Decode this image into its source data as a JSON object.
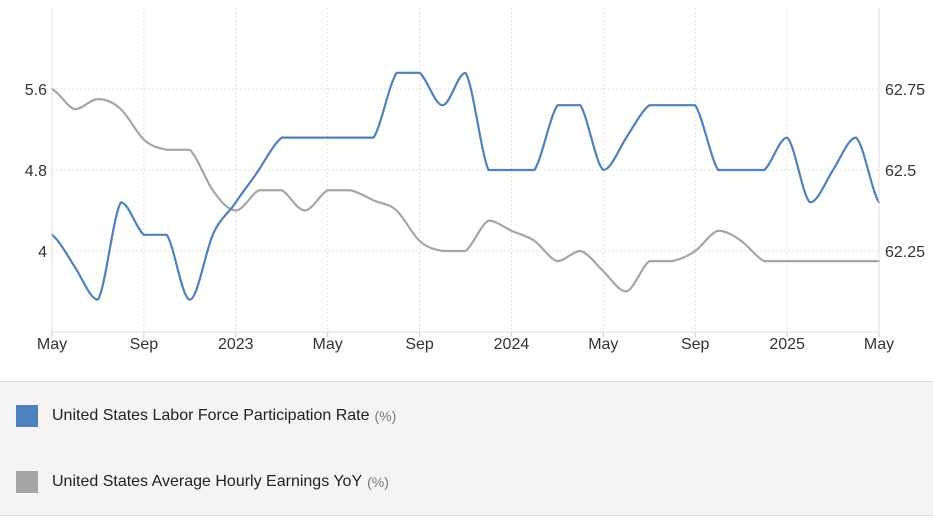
{
  "chart_data": {
    "type": "line",
    "x": [
      "2022-05",
      "2022-06",
      "2022-07",
      "2022-08",
      "2022-09",
      "2022-10",
      "2022-11",
      "2022-12",
      "2023-01",
      "2023-02",
      "2023-03",
      "2023-04",
      "2023-05",
      "2023-06",
      "2023-07",
      "2023-08",
      "2023-09",
      "2023-10",
      "2023-11",
      "2023-12",
      "2024-01",
      "2024-02",
      "2024-03",
      "2024-04",
      "2024-05",
      "2024-06",
      "2024-07",
      "2024-08",
      "2024-09",
      "2024-10",
      "2024-11",
      "2024-12",
      "2025-01",
      "2025-02",
      "2025-03",
      "2025-04",
      "2025-05"
    ],
    "x_tick_labels": [
      "May",
      "Sep",
      "2023",
      "May",
      "Sep",
      "2024",
      "May",
      "Sep",
      "2025",
      "May"
    ],
    "y_left": {
      "ticks": [
        "5.6",
        "4.8",
        "4"
      ],
      "tick_values": [
        5.6,
        4.8,
        4.0
      ],
      "range": [
        3.2,
        6.4
      ]
    },
    "y_right": {
      "ticks": [
        "62.75",
        "62.5",
        "62.25"
      ],
      "tick_values": [
        62.75,
        62.5,
        62.25
      ],
      "range": [
        62.0,
        63.0
      ]
    },
    "grid": true,
    "legend_placement": "bottom",
    "series": [
      {
        "name": "United States Labor Force Participation Rate",
        "unit": "(%)",
        "axis": "right",
        "color": "#4f81bd",
        "values": [
          62.3,
          62.2,
          62.1,
          62.4,
          62.3,
          62.3,
          62.1,
          62.3,
          62.4,
          62.5,
          62.6,
          62.6,
          62.6,
          62.6,
          62.6,
          62.8,
          62.8,
          62.7,
          62.8,
          62.5,
          62.5,
          62.5,
          62.7,
          62.7,
          62.5,
          62.6,
          62.7,
          62.7,
          62.7,
          62.5,
          62.5,
          62.5,
          62.6,
          62.4,
          62.5,
          62.6,
          62.4
        ]
      },
      {
        "name": "United States Average Hourly Earnings YoY",
        "unit": "(%)",
        "axis": "left",
        "color": "#a6a6a6",
        "values": [
          5.6,
          5.4,
          5.5,
          5.4,
          5.1,
          5.0,
          5.0,
          4.6,
          4.4,
          4.6,
          4.6,
          4.4,
          4.6,
          4.6,
          4.5,
          4.4,
          4.1,
          4.0,
          4.0,
          4.3,
          4.2,
          4.1,
          3.9,
          4.0,
          3.8,
          3.6,
          3.9,
          3.9,
          4.0,
          4.2,
          4.1,
          3.9,
          3.9,
          3.9,
          3.9,
          3.9,
          3.9
        ]
      }
    ]
  }
}
